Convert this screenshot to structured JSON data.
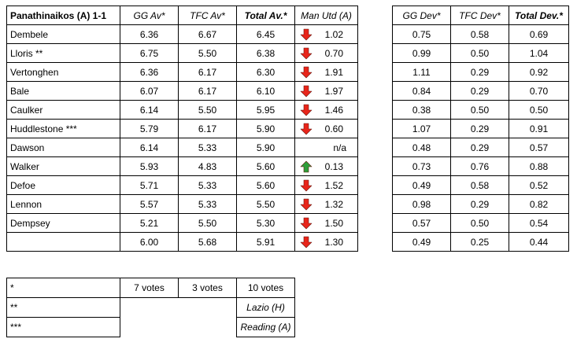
{
  "main": {
    "headers": [
      "Panathinaikos (A) 1-1",
      "GG Av*",
      "TFC Av*",
      "Total Av.*",
      "Man Utd (A)"
    ],
    "rows": [
      {
        "name": "Dembele",
        "gg": "6.36",
        "tfc": "6.67",
        "total": "6.45",
        "mu": "1.02",
        "dir": "down"
      },
      {
        "name": "Lloris **",
        "gg": "6.75",
        "tfc": "5.50",
        "total": "6.38",
        "mu": "0.70",
        "dir": "down"
      },
      {
        "name": "Vertonghen",
        "gg": "6.36",
        "tfc": "6.17",
        "total": "6.30",
        "mu": "1.91",
        "dir": "down"
      },
      {
        "name": "Bale",
        "gg": "6.07",
        "tfc": "6.17",
        "total": "6.10",
        "mu": "1.97",
        "dir": "down"
      },
      {
        "name": "Caulker",
        "gg": "6.14",
        "tfc": "5.50",
        "total": "5.95",
        "mu": "1.46",
        "dir": "down"
      },
      {
        "name": "Huddlestone ***",
        "gg": "5.79",
        "tfc": "6.17",
        "total": "5.90",
        "mu": "0.60",
        "dir": "down"
      },
      {
        "name": "Dawson",
        "gg": "6.14",
        "tfc": "5.33",
        "total": "5.90",
        "mu": "n/a",
        "dir": "none"
      },
      {
        "name": "Walker",
        "gg": "5.93",
        "tfc": "4.83",
        "total": "5.60",
        "mu": "0.13",
        "dir": "up"
      },
      {
        "name": "Defoe",
        "gg": "5.71",
        "tfc": "5.33",
        "total": "5.60",
        "mu": "1.52",
        "dir": "down"
      },
      {
        "name": "Lennon",
        "gg": "5.57",
        "tfc": "5.33",
        "total": "5.50",
        "mu": "1.32",
        "dir": "down"
      },
      {
        "name": "Dempsey",
        "gg": "5.21",
        "tfc": "5.50",
        "total": "5.30",
        "mu": "1.50",
        "dir": "down"
      },
      {
        "name": "",
        "gg": "6.00",
        "tfc": "5.68",
        "total": "5.91",
        "mu": "1.30",
        "dir": "down"
      }
    ]
  },
  "dev": {
    "headers": [
      "GG Dev*",
      "TFC Dev*",
      "Total Dev.*"
    ],
    "rows": [
      [
        "0.75",
        "0.58",
        "0.69"
      ],
      [
        "0.99",
        "0.50",
        "1.04"
      ],
      [
        "1.11",
        "0.29",
        "0.92"
      ],
      [
        "0.84",
        "0.29",
        "0.70"
      ],
      [
        "0.38",
        "0.50",
        "0.50"
      ],
      [
        "1.07",
        "0.29",
        "0.91"
      ],
      [
        "0.48",
        "0.29",
        "0.57"
      ],
      [
        "0.73",
        "0.76",
        "0.88"
      ],
      [
        "0.49",
        "0.58",
        "0.52"
      ],
      [
        "0.98",
        "0.29",
        "0.82"
      ],
      [
        "0.57",
        "0.50",
        "0.54"
      ],
      [
        "0.49",
        "0.25",
        "0.44"
      ]
    ]
  },
  "legend": {
    "row1": {
      "mark": "*",
      "gg_votes": "7 votes",
      "tfc_votes": "3 votes",
      "total_votes": "10 votes"
    },
    "row2": {
      "mark": "**",
      "note": "Lazio (H)"
    },
    "row3": {
      "mark": "***",
      "note": "Reading (A)"
    }
  },
  "colors": {
    "down_arrow": "#e8251a",
    "up_arrow": "#2e9e3a"
  }
}
